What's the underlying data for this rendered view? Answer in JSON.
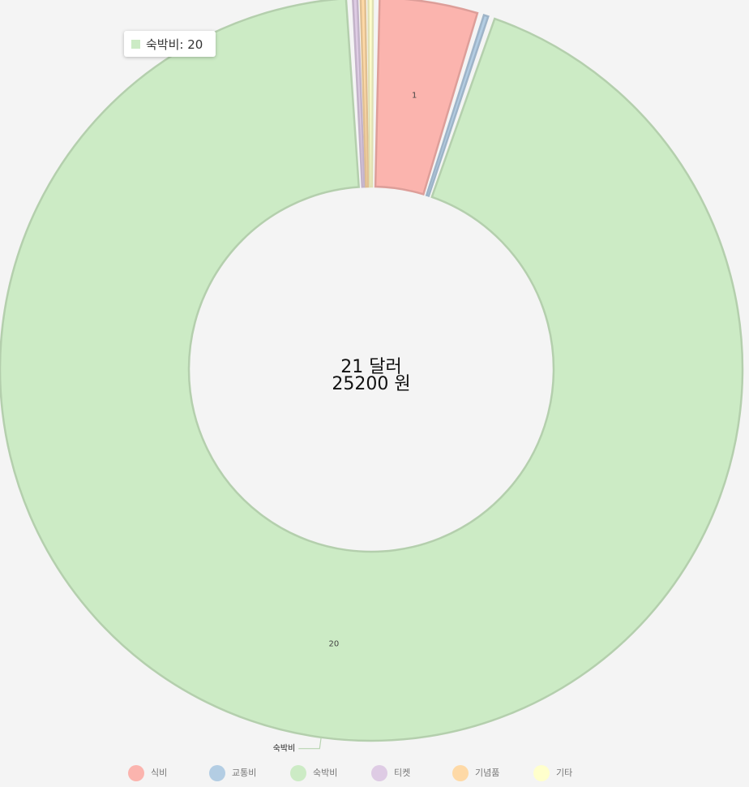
{
  "chart_data": {
    "type": "donut",
    "categories": [
      "식비",
      "교통비",
      "숙박비",
      "티켓",
      "기념품",
      "기타"
    ],
    "values": [
      1,
      0,
      20,
      0,
      0,
      0
    ],
    "colors": [
      "#fbb4ae",
      "#b3cde3",
      "#ccebc5",
      "#decbe4",
      "#fed9a6",
      "#ffffcc"
    ],
    "center_text": [
      "21 달러",
      "25200 원"
    ],
    "tooltip": "숙박비: 20",
    "legend": "bottom"
  }
}
